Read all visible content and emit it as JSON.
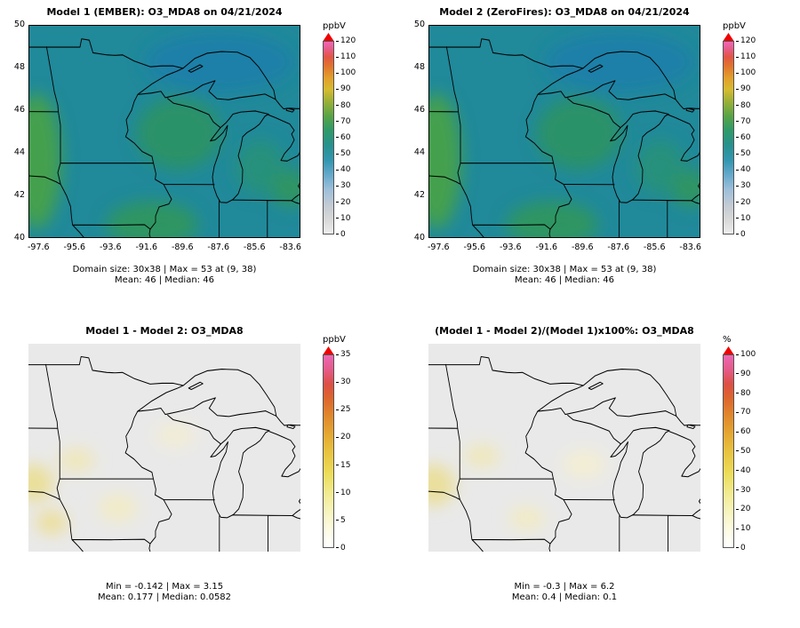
{
  "figure": {
    "background": "#ffffff",
    "description": "2x2 panel spatial comparison of O3_MDA8 between two model runs over the Great Lakes region"
  },
  "colors": {
    "cb_arrow": "#f00000",
    "outline": "#000000"
  },
  "colorscales": {
    "spectral": [
      "#ededed 0%",
      "#d9d9d9 7%",
      "#c6ccd3 14%",
      "#9dbfda 23%",
      "#62a8cb 31%",
      "#3397b1 38%",
      "#27918e 46%",
      "#2f9a68 54%",
      "#56a447 61%",
      "#9cb037 69%",
      "#d6bb2f 75%",
      "#e2a02b 81%",
      "#e2762c 87%",
      "#e25544 92%",
      "#e75b85 96%",
      "#ee68b8 100%"
    ],
    "yellow_red": [
      "#ffffff 0%",
      "#fdfce9 7%",
      "#f9f6c8 16%",
      "#f3ec96 27%",
      "#ecdd5b 38%",
      "#e8c23e 50%",
      "#e4a430 60%",
      "#e0862c 69%",
      "#dd642d 78%",
      "#dd4f44 85%",
      "#e55a86 92%",
      "#ec66b5 100%"
    ]
  },
  "chart_data": {
    "type": "heatmap",
    "layout": "2x2 spatial maps",
    "variable": "O3_MDA8",
    "date": "04/21/2024",
    "panels": [
      {
        "type": "heatmap",
        "title": "Model 1 (EMBER): O3_MDA8 on 04/21/2024",
        "x_ticks": [
          "-97.6",
          "-95.6",
          "-93.6",
          "-91.6",
          "-89.6",
          "-87.6",
          "-85.6",
          "-83.6"
        ],
        "y_ticks": [
          "50",
          "48",
          "46",
          "44",
          "42",
          "40"
        ],
        "xlim": [
          -98.2,
          -83.0
        ],
        "ylim": [
          40,
          50
        ],
        "colorbar": {
          "unit": "ppbV",
          "min": 0,
          "max": 120,
          "ticks": [
            0,
            10,
            20,
            30,
            40,
            50,
            60,
            70,
            80,
            90,
            100,
            110,
            120
          ],
          "scale": "spectral"
        },
        "stats": {
          "domain_size": "30x38",
          "max": 53,
          "max_at": "(9, 38)",
          "mean": 46,
          "median": 46
        },
        "stats_line1": "Domain size: 30x38 | Max = 53 at (9, 38)",
        "stats_line2": "Mean: 46 | Median: 46",
        "field": {
          "base": "#20899a",
          "blob_colors": [
            "#1d80a8",
            "#2b9268",
            "#44a04e",
            "#2f9562",
            "#27917c",
            "#2e9464"
          ]
        }
      },
      {
        "type": "heatmap",
        "title": "Model 2 (ZeroFires): O3_MDA8 on 04/21/2024",
        "x_ticks": [
          "-97.6",
          "-95.6",
          "-93.6",
          "-91.6",
          "-89.6",
          "-87.6",
          "-85.6",
          "-83.6"
        ],
        "y_ticks": [
          "50",
          "48",
          "46",
          "44",
          "42",
          "40"
        ],
        "xlim": [
          -98.2,
          -83.0
        ],
        "ylim": [
          40,
          50
        ],
        "colorbar": {
          "unit": "ppbV",
          "min": 0,
          "max": 120,
          "ticks": [
            0,
            10,
            20,
            30,
            40,
            50,
            60,
            70,
            80,
            90,
            100,
            110,
            120
          ],
          "scale": "spectral"
        },
        "stats": {
          "domain_size": "30x38",
          "max": 53,
          "max_at": "(9, 38)",
          "mean": 46,
          "median": 46
        },
        "stats_line1": "Domain size: 30x38 | Max = 53 at (9, 38)",
        "stats_line2": "Mean: 46 | Median: 46",
        "field": {
          "base": "#20899a",
          "blob_colors": [
            "#1d80a8",
            "#2b9268",
            "#44a04e",
            "#2f9562",
            "#27917c",
            "#2e9464"
          ]
        }
      },
      {
        "type": "heatmap",
        "title": "Model 1 - Model 2: O3_MDA8",
        "colorbar": {
          "unit": "ppbV",
          "min": 0,
          "max": 35,
          "ticks": [
            0,
            5,
            10,
            15,
            20,
            25,
            30,
            35
          ],
          "scale": "yellow_red"
        },
        "stats": {
          "min": -0.142,
          "max": 3.15,
          "mean": 0.177,
          "median": 0.0582
        },
        "stats_line1": "Min = -0.142 | Max = 3.15",
        "stats_line2": "Mean: 0.177 | Median: 0.0582",
        "field": {
          "base": "#e9e9e9",
          "blob_colors": [
            "#eadf9a",
            "#efe7bb",
            "#ecdf9f",
            "#f1ebc8",
            "#f2edd6"
          ]
        }
      },
      {
        "type": "heatmap",
        "title": "(Model 1 - Model 2)/(Model 1)x100%: O3_MDA8",
        "colorbar": {
          "unit": "%",
          "min": 0,
          "max": 100,
          "ticks": [
            0,
            10,
            20,
            30,
            40,
            50,
            60,
            70,
            80,
            90,
            100
          ],
          "scale": "yellow_red"
        },
        "stats": {
          "min": -0.3,
          "max": 6.2,
          "mean": 0.4,
          "median": 0.1
        },
        "stats_line1": "Min = -0.3 | Max = 6.2",
        "stats_line2": "Mean: 0.4 | Median: 0.1",
        "field": {
          "base": "#e9e9e9",
          "blob_colors": [
            "#eadf9c",
            "#efe8bd",
            "#f1ebc6",
            "#f3eed4"
          ]
        }
      }
    ]
  }
}
